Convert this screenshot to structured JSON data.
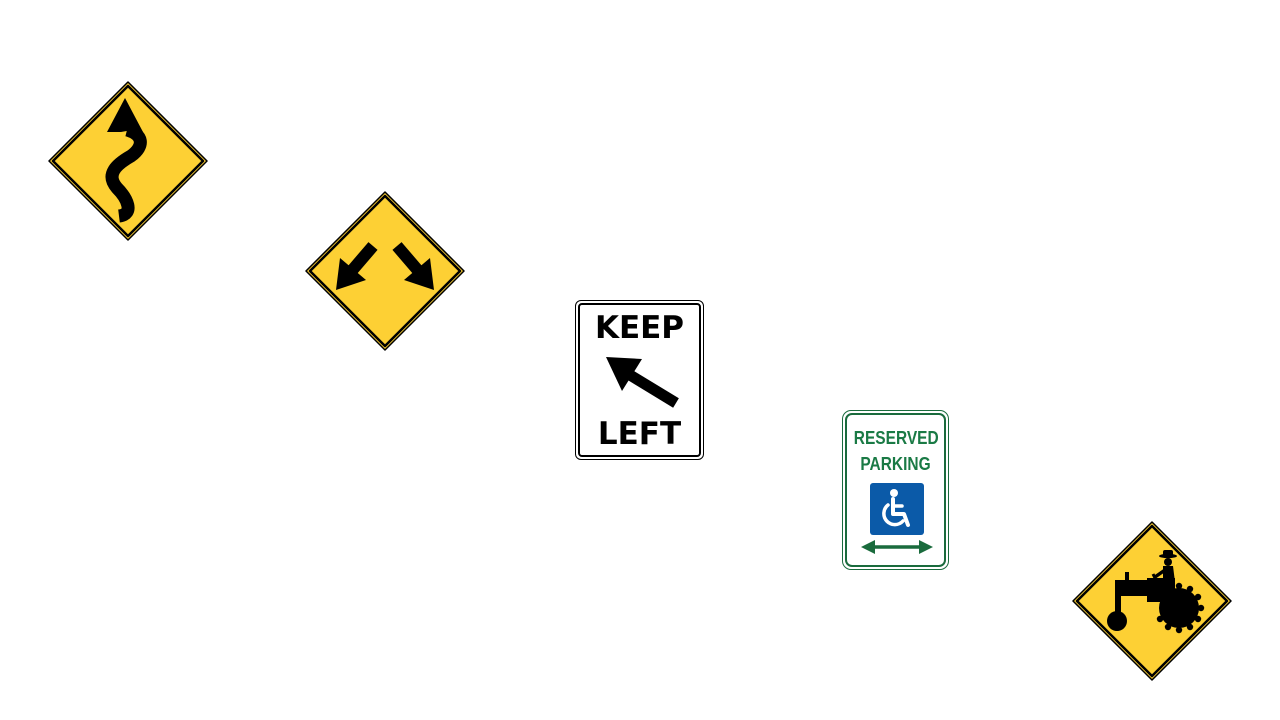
{
  "signs": {
    "winding_road": {
      "icon": "winding-road-arrow-icon",
      "colors": {
        "background": "#fdd034",
        "border": "#000000",
        "symbol": "#000000"
      }
    },
    "divided_highway_ends": {
      "icon": "diverging-arrows-icon",
      "colors": {
        "background": "#fdd034",
        "border": "#000000",
        "symbol": "#000000"
      }
    },
    "keep_left": {
      "line1": "KEEP",
      "line2": "LEFT",
      "icon": "up-left-arrow-icon",
      "colors": {
        "background": "#ffffff",
        "border": "#000000",
        "text": "#000000"
      }
    },
    "reserved_parking": {
      "line1": "RESERVED",
      "line2": "PARKING",
      "icon": "wheelchair-icon",
      "arrow_icon": "double-headed-arrow-icon",
      "colors": {
        "text": "#1a7a45",
        "border": "#1a6b3d",
        "symbol_bg": "#0b5aa8",
        "symbol": "#ffffff"
      }
    },
    "farm_machinery": {
      "icon": "tractor-icon",
      "colors": {
        "background": "#fdd034",
        "border": "#000000",
        "symbol": "#000000"
      }
    }
  }
}
